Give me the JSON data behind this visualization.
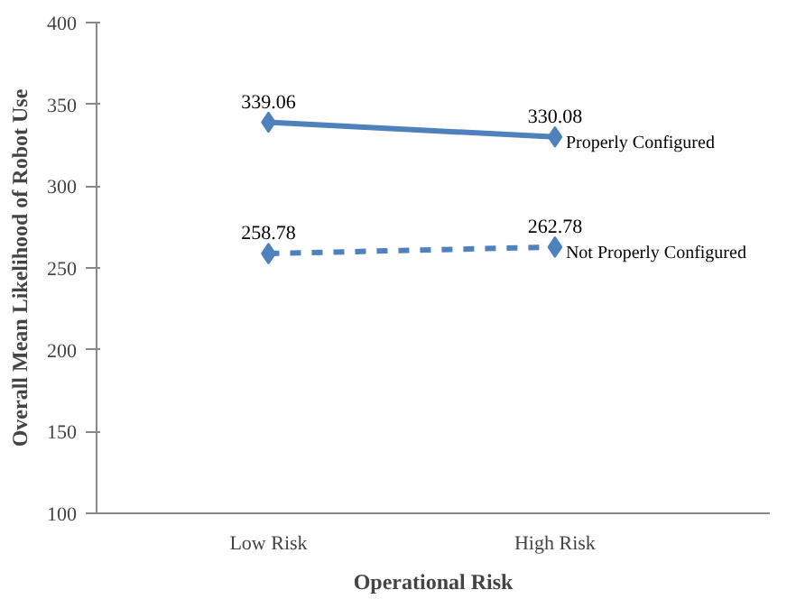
{
  "chart_data": {
    "type": "line",
    "xlabel": "Operational Risk",
    "ylabel": "Overall Mean Likelihood of Robot Use",
    "categories": [
      "Low Risk",
      "High Risk"
    ],
    "series": [
      {
        "name": "Properly Configured",
        "color": "#4f81bd",
        "values": [
          339.06,
          330.08
        ],
        "line_style": "solid"
      },
      {
        "name": "Not Properly Configured",
        "color": "#4f81bd",
        "values": [
          258.78,
          262.78
        ],
        "line_style": "dashed"
      }
    ],
    "ylim": [
      100,
      400
    ],
    "yticks": [
      100,
      150,
      200,
      250,
      300,
      350,
      400
    ],
    "grid": false,
    "legend": false,
    "marker": "diamond",
    "data_labels": true
  }
}
